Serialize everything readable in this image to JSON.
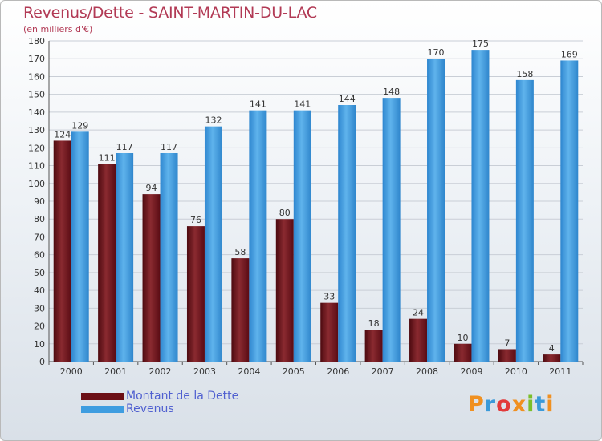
{
  "title": "Revenus/Dette - SAINT-MARTIN-DU-LAC",
  "subtitle": "(en milliers d'€)",
  "logo_text": "Proxiti",
  "colors": {
    "title": "#b23a55",
    "debt": "#7a1c22",
    "revenue": "#3f9de0",
    "legend_text": "#5060d0"
  },
  "legend": [
    {
      "label": "Montant de la Dette",
      "color": "#6b0f16"
    },
    {
      "label": "Revenus",
      "color": "#3f9de0"
    }
  ],
  "chart_data": {
    "type": "bar",
    "categories": [
      "2000",
      "2001",
      "2002",
      "2003",
      "2004",
      "2005",
      "2006",
      "2007",
      "2008",
      "2009",
      "2010",
      "2011"
    ],
    "series": [
      {
        "name": "Montant de la Dette",
        "values": [
          124,
          111,
          94,
          76,
          58,
          80,
          33,
          18,
          24,
          10,
          7,
          4
        ]
      },
      {
        "name": "Revenus",
        "values": [
          129,
          117,
          117,
          132,
          141,
          141,
          144,
          148,
          170,
          175,
          158,
          169
        ]
      }
    ],
    "ylim": [
      0,
      180
    ],
    "yticks": [
      0,
      10,
      20,
      30,
      40,
      50,
      60,
      70,
      80,
      90,
      100,
      110,
      120,
      130,
      140,
      150,
      160,
      170,
      180
    ],
    "grid": true,
    "legend_position": "bottom-left"
  }
}
